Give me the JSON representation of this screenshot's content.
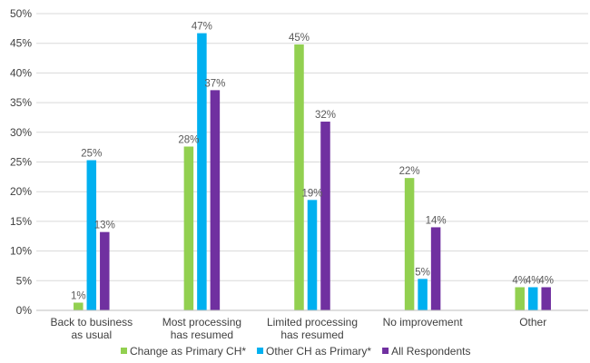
{
  "chart_data": {
    "type": "bar",
    "categories": [
      [
        "Back to business",
        "as usual"
      ],
      [
        "Most processing",
        "has resumed"
      ],
      [
        "Limited processing",
        "has resumed"
      ],
      [
        "No improvement"
      ],
      [
        "Other"
      ]
    ],
    "series": [
      {
        "name": "Change as Primary CH*",
        "color": "#92d050",
        "values": [
          1,
          28,
          45,
          22,
          4
        ]
      },
      {
        "name": "Other CH as Primary*",
        "color": "#00b0f0",
        "values": [
          25,
          47,
          19,
          5,
          4
        ]
      },
      {
        "name": "All Respondents",
        "color": "#7030a0",
        "values": [
          13,
          37,
          32,
          14,
          4
        ]
      }
    ],
    "bar_values": [
      [
        1.3,
        27.6,
        44.8,
        22.3,
        3.9
      ],
      [
        25.3,
        46.7,
        18.6,
        5.3,
        3.9
      ],
      [
        13.2,
        37.1,
        31.8,
        14.0,
        3.9
      ]
    ],
    "y_ticks": [
      "0%",
      "5%",
      "10%",
      "15%",
      "20%",
      "25%",
      "30%",
      "35%",
      "40%",
      "45%",
      "50%"
    ],
    "ylim": [
      0,
      50
    ],
    "grid": true,
    "legend_position": "bottom"
  }
}
